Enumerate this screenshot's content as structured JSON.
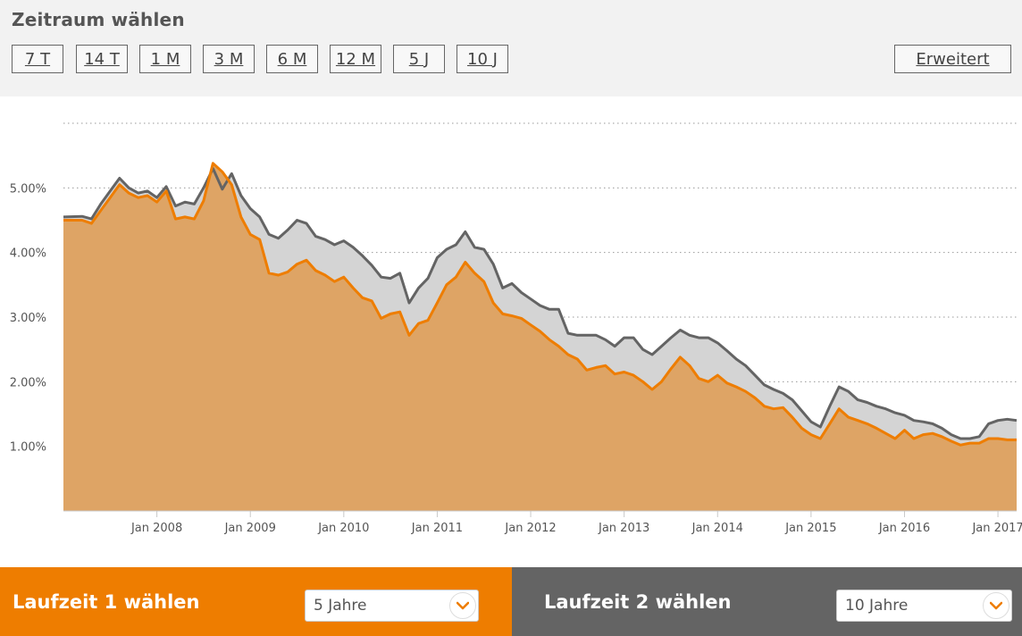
{
  "header": {
    "title": "Zeitraum wählen",
    "ranges": [
      "7 T",
      "14 T",
      "1 M",
      "3 M",
      "6 M",
      "12 M",
      "5 J",
      "10 J"
    ],
    "extended": "Erweitert"
  },
  "selectors": {
    "left": {
      "label": "Laufzeit 1 wählen",
      "value": "5 Jahre"
    },
    "right": {
      "label": "Laufzeit 2 wählen",
      "value": "10 Jahre"
    }
  },
  "colors": {
    "orange": "#ee7d00",
    "orange_fill": "#dea465",
    "gray_line": "#646464",
    "gray_fill": "#d4d4d4",
    "panel": "#f2f2f2",
    "panel_dark": "#646464"
  },
  "chart_data": {
    "type": "area",
    "ylim": [
      0,
      6
    ],
    "xlim": [
      2007.0,
      2017.2
    ],
    "yticks": [
      1,
      2,
      3,
      4,
      5
    ],
    "ytick_labels": [
      "1.00%",
      "2.00%",
      "3.00%",
      "4.00%",
      "5.00%"
    ],
    "xticks": [
      2008,
      2009,
      2010,
      2011,
      2012,
      2013,
      2014,
      2015,
      2016,
      2017
    ],
    "xtick_labels": [
      "Jan 2008",
      "Jan 2009",
      "Jan 2010",
      "Jan 2011",
      "Jan 2012",
      "Jan 2013",
      "Jan 2014",
      "Jan 2015",
      "Jan 2016",
      "Jan 2017"
    ],
    "grid": true,
    "series": [
      {
        "color": "#646464",
        "x": [
          2007.0,
          2007.2,
          2007.3,
          2007.4,
          2007.5,
          2007.6,
          2007.7,
          2007.8,
          2007.9,
          2008.0,
          2008.1,
          2008.2,
          2008.3,
          2008.4,
          2008.5,
          2008.6,
          2008.7,
          2008.8,
          2008.9,
          2009.0,
          2009.1,
          2009.2,
          2009.3,
          2009.4,
          2009.5,
          2009.6,
          2009.7,
          2009.8,
          2009.9,
          2010.0,
          2010.1,
          2010.2,
          2010.3,
          2010.4,
          2010.5,
          2010.6,
          2010.7,
          2010.8,
          2010.9,
          2011.0,
          2011.1,
          2011.2,
          2011.3,
          2011.4,
          2011.5,
          2011.6,
          2011.7,
          2011.8,
          2011.9,
          2012.0,
          2012.1,
          2012.2,
          2012.3,
          2012.4,
          2012.5,
          2012.6,
          2012.7,
          2012.8,
          2012.9,
          2013.0,
          2013.1,
          2013.2,
          2013.3,
          2013.4,
          2013.5,
          2013.6,
          2013.7,
          2013.8,
          2013.9,
          2014.0,
          2014.1,
          2014.2,
          2014.3,
          2014.4,
          2014.5,
          2014.6,
          2014.7,
          2014.8,
          2014.9,
          2015.0,
          2015.1,
          2015.2,
          2015.3,
          2015.4,
          2015.5,
          2015.6,
          2015.7,
          2015.8,
          2015.9,
          2016.0,
          2016.1,
          2016.2,
          2016.3,
          2016.4,
          2016.5,
          2016.6,
          2016.7,
          2016.8,
          2016.9,
          2017.0,
          2017.1,
          2017.2
        ],
        "y": [
          4.55,
          4.56,
          4.52,
          4.75,
          4.95,
          5.15,
          5.0,
          4.92,
          4.95,
          4.85,
          5.02,
          4.72,
          4.78,
          4.75,
          5.0,
          5.3,
          4.98,
          5.22,
          4.88,
          4.68,
          4.55,
          4.28,
          4.22,
          4.35,
          4.5,
          4.45,
          4.25,
          4.2,
          4.12,
          4.18,
          4.08,
          3.95,
          3.8,
          3.62,
          3.6,
          3.68,
          3.22,
          3.45,
          3.6,
          3.92,
          4.05,
          4.12,
          4.32,
          4.08,
          4.05,
          3.82,
          3.45,
          3.52,
          3.38,
          3.28,
          3.18,
          3.12,
          3.12,
          2.75,
          2.72,
          2.72,
          2.72,
          2.65,
          2.55,
          2.68,
          2.68,
          2.5,
          2.42,
          2.55,
          2.68,
          2.8,
          2.72,
          2.68,
          2.68,
          2.6,
          2.48,
          2.35,
          2.25,
          2.1,
          1.95,
          1.88,
          1.82,
          1.72,
          1.55,
          1.38,
          1.3,
          1.62,
          1.92,
          1.85,
          1.72,
          1.68,
          1.62,
          1.58,
          1.52,
          1.48,
          1.4,
          1.38,
          1.35,
          1.28,
          1.18,
          1.12,
          1.12,
          1.15,
          1.35,
          1.4,
          1.42,
          1.4
        ]
      },
      {
        "color": "#ee7d00",
        "x": [
          2007.0,
          2007.2,
          2007.3,
          2007.4,
          2007.5,
          2007.6,
          2007.7,
          2007.8,
          2007.9,
          2008.0,
          2008.1,
          2008.2,
          2008.3,
          2008.4,
          2008.5,
          2008.6,
          2008.7,
          2008.8,
          2008.9,
          2009.0,
          2009.1,
          2009.2,
          2009.3,
          2009.4,
          2009.5,
          2009.6,
          2009.7,
          2009.8,
          2009.9,
          2010.0,
          2010.1,
          2010.2,
          2010.3,
          2010.4,
          2010.5,
          2010.6,
          2010.7,
          2010.8,
          2010.9,
          2011.0,
          2011.1,
          2011.2,
          2011.3,
          2011.4,
          2011.5,
          2011.6,
          2011.7,
          2011.8,
          2011.9,
          2012.0,
          2012.1,
          2012.2,
          2012.3,
          2012.4,
          2012.5,
          2012.6,
          2012.7,
          2012.8,
          2012.9,
          2013.0,
          2013.1,
          2013.2,
          2013.3,
          2013.4,
          2013.5,
          2013.6,
          2013.7,
          2013.8,
          2013.9,
          2014.0,
          2014.1,
          2014.2,
          2014.3,
          2014.4,
          2014.5,
          2014.6,
          2014.7,
          2014.8,
          2014.9,
          2015.0,
          2015.1,
          2015.2,
          2015.3,
          2015.4,
          2015.5,
          2015.6,
          2015.7,
          2015.8,
          2015.9,
          2016.0,
          2016.1,
          2016.2,
          2016.3,
          2016.4,
          2016.5,
          2016.6,
          2016.7,
          2016.8,
          2016.9,
          2017.0,
          2017.1,
          2017.2
        ],
        "y": [
          4.5,
          4.5,
          4.45,
          4.65,
          4.85,
          5.05,
          4.92,
          4.85,
          4.88,
          4.78,
          4.95,
          4.52,
          4.55,
          4.52,
          4.8,
          5.38,
          5.25,
          5.05,
          4.55,
          4.28,
          4.2,
          3.68,
          3.65,
          3.7,
          3.82,
          3.88,
          3.72,
          3.65,
          3.55,
          3.62,
          3.45,
          3.3,
          3.25,
          2.98,
          3.05,
          3.08,
          2.72,
          2.9,
          2.95,
          3.22,
          3.5,
          3.62,
          3.85,
          3.68,
          3.55,
          3.22,
          3.05,
          3.02,
          2.98,
          2.88,
          2.78,
          2.65,
          2.55,
          2.42,
          2.35,
          2.18,
          2.22,
          2.25,
          2.12,
          2.15,
          2.1,
          2.0,
          1.88,
          2.0,
          2.2,
          2.38,
          2.25,
          2.05,
          2.0,
          2.1,
          1.98,
          1.92,
          1.85,
          1.75,
          1.62,
          1.58,
          1.6,
          1.45,
          1.28,
          1.18,
          1.12,
          1.35,
          1.58,
          1.45,
          1.4,
          1.35,
          1.28,
          1.2,
          1.12,
          1.25,
          1.12,
          1.18,
          1.2,
          1.15,
          1.08,
          1.02,
          1.05,
          1.05,
          1.12,
          1.12,
          1.1,
          1.1
        ]
      }
    ]
  }
}
